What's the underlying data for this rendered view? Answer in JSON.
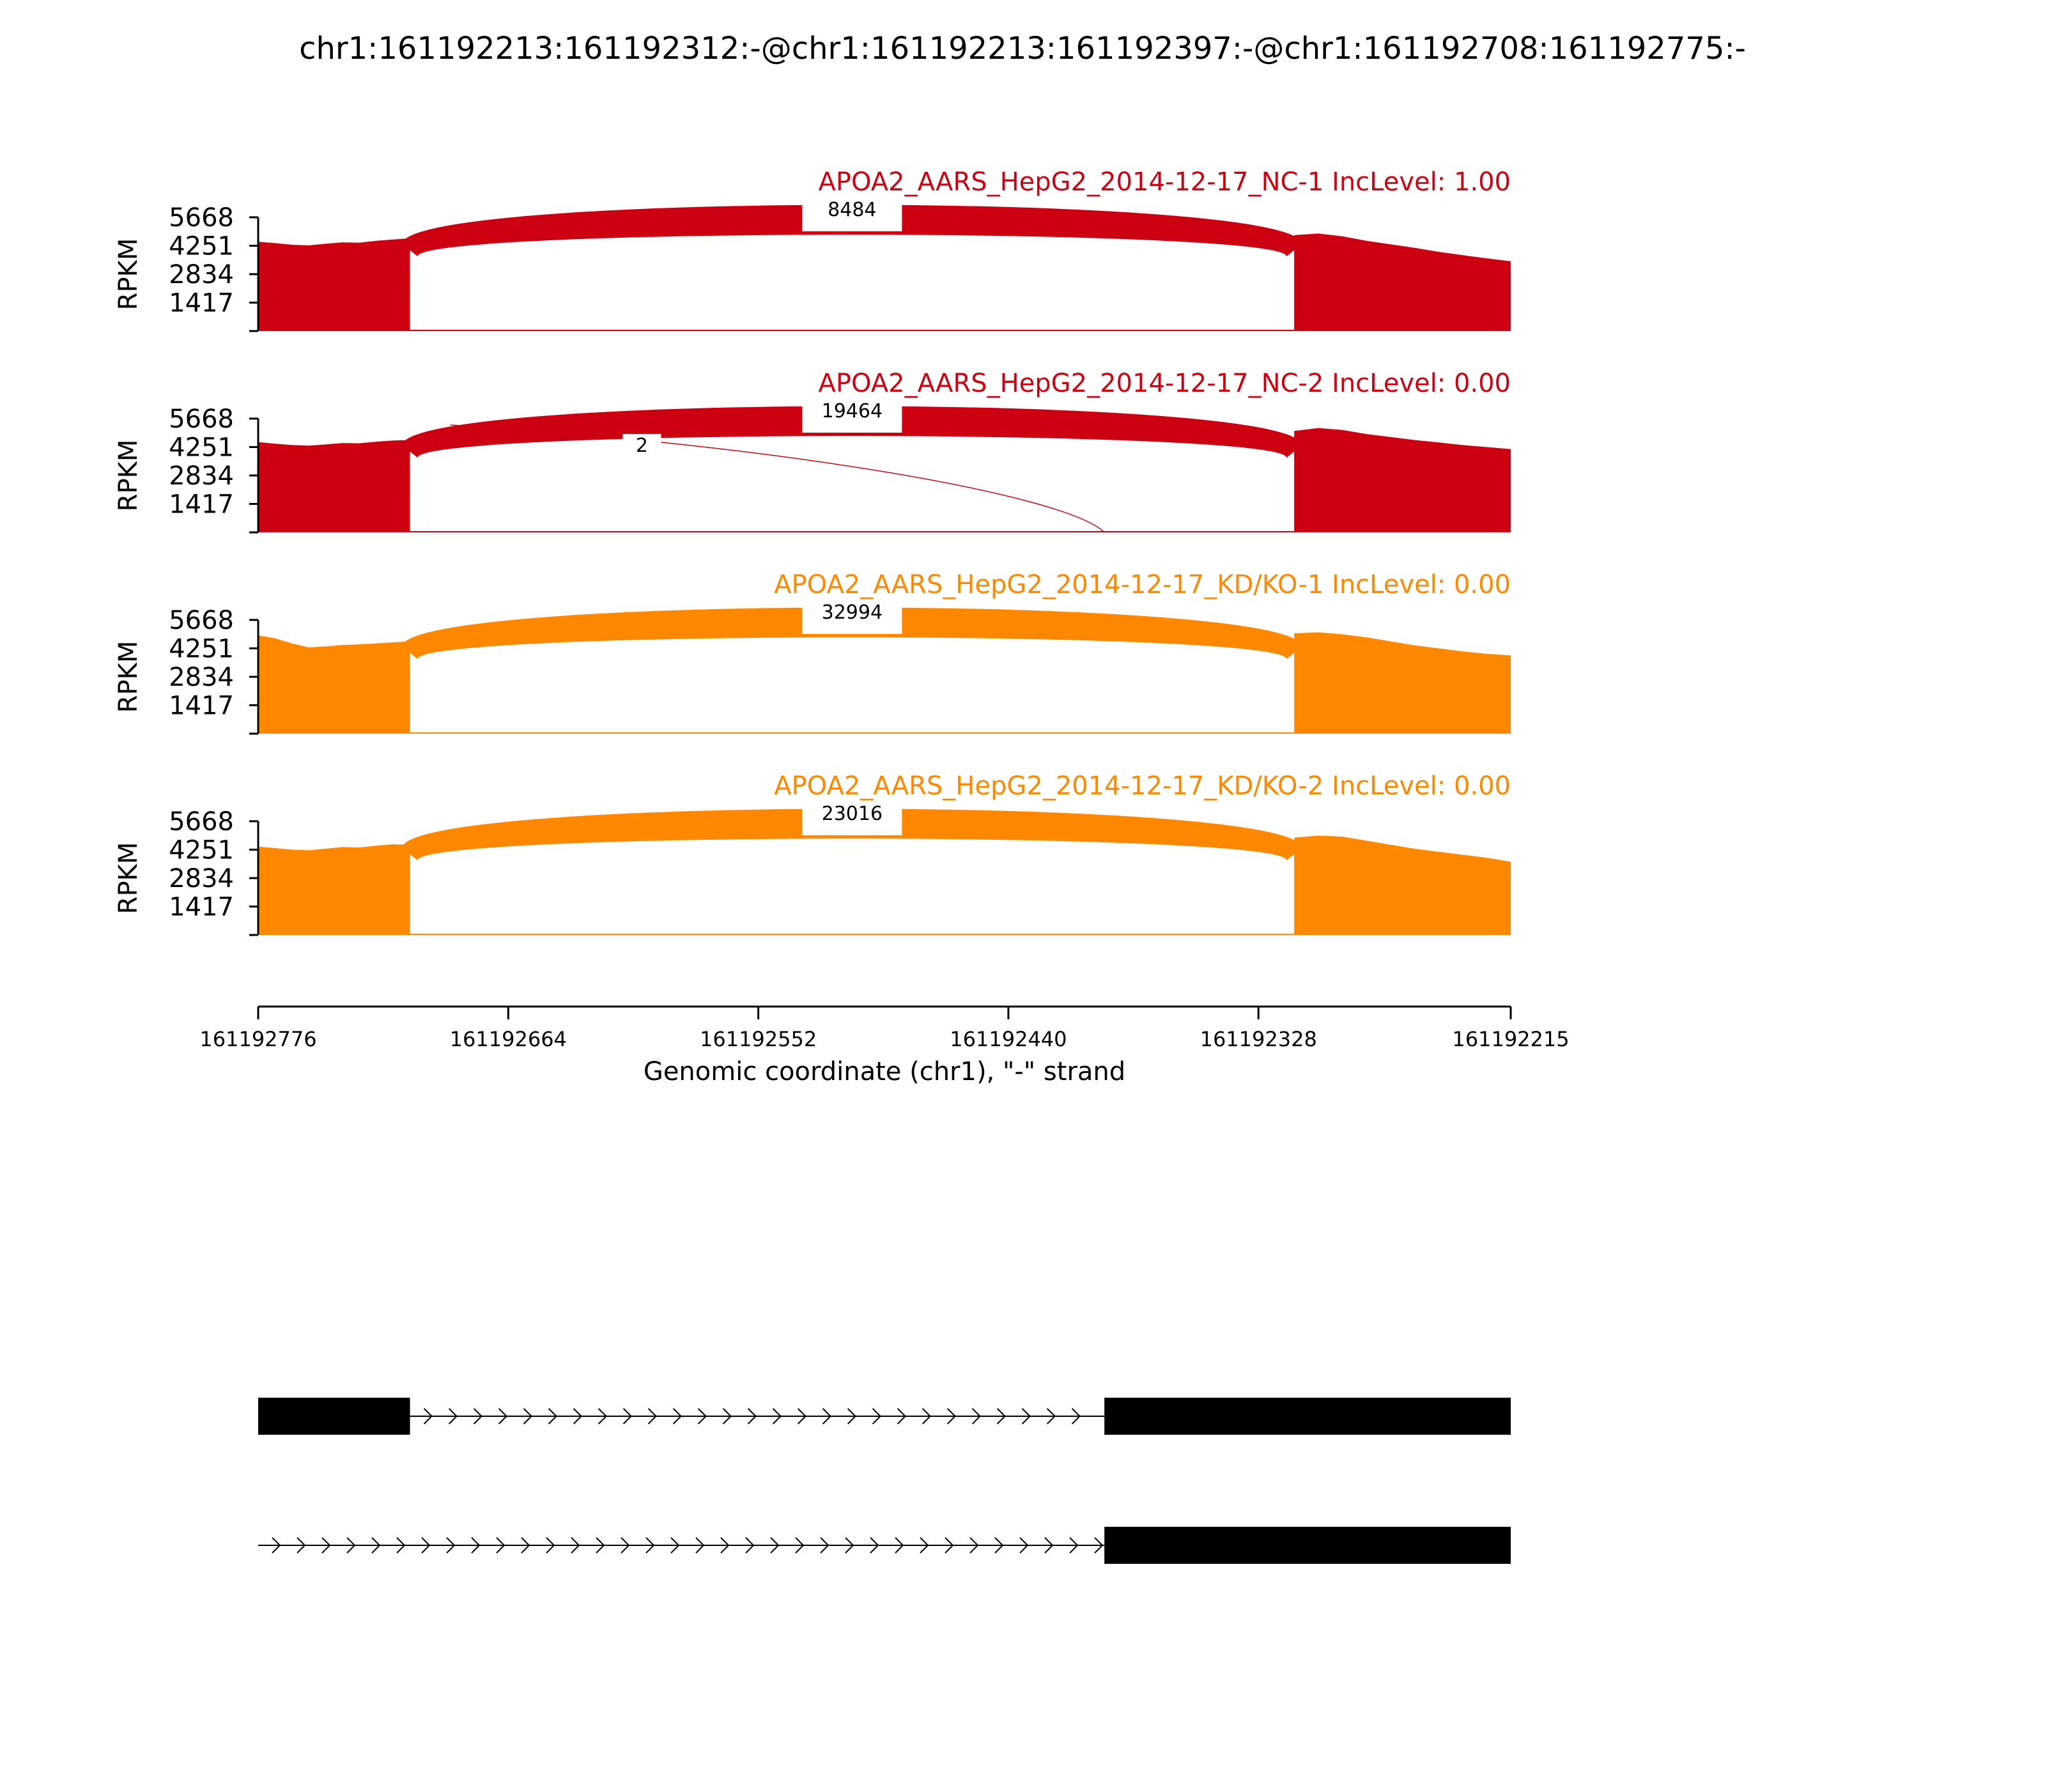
{
  "title": "chr1:161192213:161192312:-@chr1:161192213:161192397:-@chr1:161192708:161192775:-",
  "chart_data": {
    "type": "sashimi",
    "title": "chr1:161192213:161192312:-@chr1:161192213:161192397:-@chr1:161192708:161192775:-",
    "xlabel": "Genomic coordinate (chr1), \"-\" strand",
    "ylabel": "RPKM",
    "x_ticks": [
      "161192776",
      "161192664",
      "161192552",
      "161192440",
      "161192328",
      "161192215"
    ],
    "x_range": [
      161192776,
      161192215
    ],
    "y_ticks": [
      "5668",
      "4251",
      "2834",
      "1417"
    ],
    "y_range": [
      0,
      5668
    ],
    "exon_segments": [
      [
        161192776,
        161192708
      ],
      [
        161192312,
        161192215
      ]
    ],
    "tracks": [
      {
        "label": "APOA2_AARS_HepG2_2014-12-17_NC-1 IncLevel: 1.00",
        "color": "#cc0011",
        "coverage": [
          {
            "segment": 0,
            "values": [
              4450,
              4380,
              4300,
              4270,
              4350,
              4420,
              4400,
              4500,
              4560,
              4620
            ]
          },
          {
            "segment": 1,
            "values": [
              4780,
              4860,
              4720,
              4500,
              4320,
              4150,
              3950,
              3780,
              3620,
              3480
            ]
          }
        ],
        "junctions": [
          {
            "start": 161192708,
            "end": 161192312,
            "count": "8484",
            "thickness": "thick"
          }
        ]
      },
      {
        "label": "APOA2_AARS_HepG2_2014-12-17_NC-2 IncLevel: 0.00",
        "color": "#cc0011",
        "coverage": [
          {
            "segment": 0,
            "values": [
              4500,
              4420,
              4350,
              4320,
              4380,
              4450,
              4440,
              4520,
              4580,
              4600
            ]
          },
          {
            "segment": 1,
            "values": [
              5050,
              5200,
              5100,
              4900,
              4750,
              4600,
              4480,
              4350,
              4250,
              4150
            ]
          }
        ],
        "junctions": [
          {
            "start": 161192708,
            "end": 161192312,
            "count": "19464",
            "thickness": "thick"
          },
          {
            "start": 161192690,
            "end": 161192397,
            "count": "2",
            "thickness": "thin"
          }
        ]
      },
      {
        "label": "APOA2_AARS_HepG2_2014-12-17_KD/KO-1 IncLevel: 0.00",
        "color": "#ff8800",
        "coverage": [
          {
            "segment": 0,
            "values": [
              4900,
              4750,
              4500,
              4300,
              4350,
              4420,
              4450,
              4500,
              4550,
              4600
            ]
          },
          {
            "segment": 1,
            "values": [
              5000,
              5050,
              4950,
              4800,
              4600,
              4400,
              4250,
              4100,
              3980,
              3900
            ]
          }
        ],
        "junctions": [
          {
            "start": 161192708,
            "end": 161192312,
            "count": "32994",
            "thickness": "thick"
          }
        ]
      },
      {
        "label": "APOA2_AARS_HepG2_2014-12-17_KD/KO-2 IncLevel: 0.00",
        "color": "#ff8800",
        "coverage": [
          {
            "segment": 0,
            "values": [
              4400,
              4330,
              4250,
              4220,
              4300,
              4380,
              4360,
              4450,
              4520,
              4500
            ]
          },
          {
            "segment": 1,
            "values": [
              4850,
              4950,
              4900,
              4700,
              4500,
              4300,
              4150,
              4000,
              3850,
              3650
            ]
          }
        ],
        "junctions": [
          {
            "start": 161192708,
            "end": 161192312,
            "count": "23016",
            "thickness": "thick"
          }
        ]
      }
    ],
    "transcripts": [
      {
        "exons": [
          [
            161192776,
            161192708
          ],
          [
            161192397,
            161192215
          ]
        ],
        "line_start": 161192776
      },
      {
        "exons": [
          [
            161192397,
            161192215
          ]
        ],
        "line_start": 161192776
      }
    ]
  }
}
